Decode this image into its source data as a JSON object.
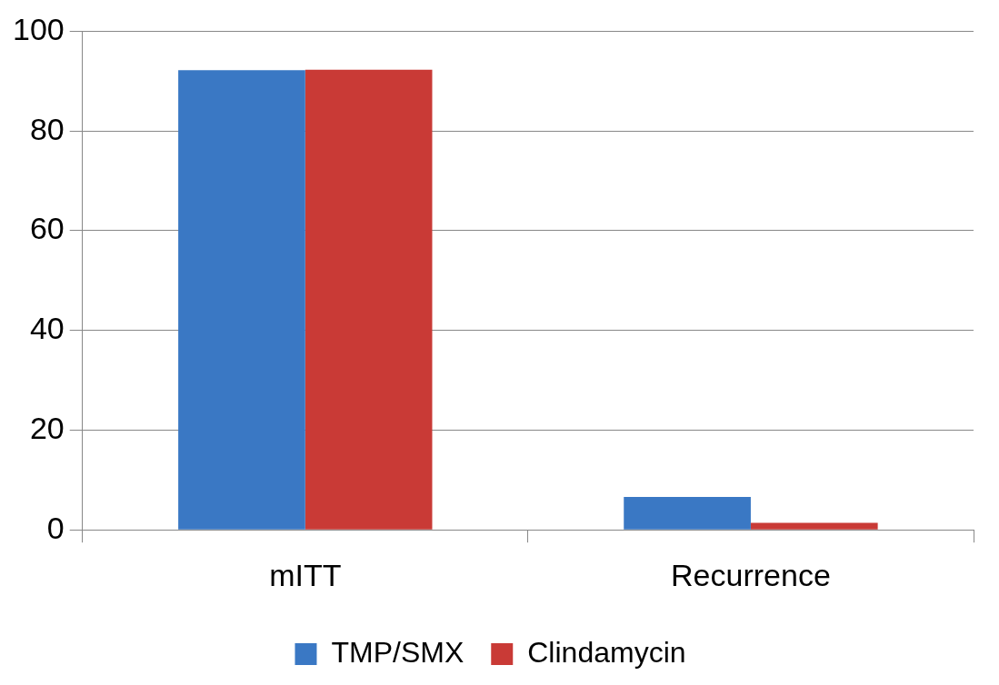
{
  "chart_data": {
    "type": "bar",
    "categories": [
      "mITT",
      "Recurrence"
    ],
    "series": [
      {
        "name": "TMP/SMX",
        "color": "#3a78c4",
        "values": [
          92.2,
          6.6
        ]
      },
      {
        "name": "Clindamycin",
        "color": "#c93a36",
        "values": [
          92.3,
          1.4
        ]
      }
    ],
    "ylim": [
      0,
      100
    ],
    "yticks": [
      0,
      20,
      40,
      60,
      80,
      100
    ],
    "grid": "y",
    "legend": "bottom"
  }
}
